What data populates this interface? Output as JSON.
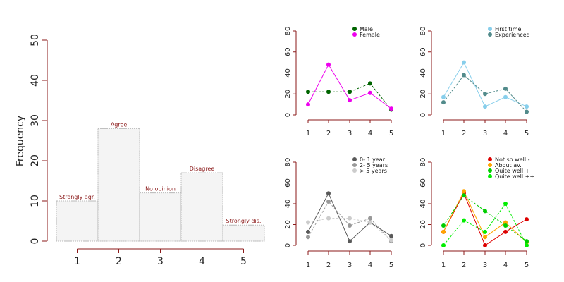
{
  "chart_data": [
    {
      "type": "bar",
      "ylabel": "Frequency",
      "categories": [
        "1",
        "2",
        "3",
        "4",
        "5"
      ],
      "values": [
        10,
        28,
        12,
        17,
        4
      ],
      "bar_labels": [
        "Strongly agr.",
        "Agree",
        "No opinion",
        "Disagree",
        "Strongly dis."
      ],
      "ylim": [
        0,
        50
      ],
      "yticks": [
        "0",
        "10",
        "20",
        "30",
        "40",
        "50"
      ],
      "colors": {
        "bar_fill": "#f4f4f4",
        "bar_stroke": "#b8b8b8",
        "bar_label": "#8b1a1a",
        "axis": "#8b1a1a"
      }
    },
    {
      "type": "line",
      "x": [
        "1",
        "2",
        "3",
        "4",
        "5"
      ],
      "ylim": [
        0,
        80
      ],
      "yticks": [
        "0",
        "20",
        "40",
        "60",
        "80"
      ],
      "legend": "top-right",
      "series": [
        {
          "name": "Male",
          "values": [
            22,
            22,
            22,
            30,
            5
          ],
          "color": "#006400",
          "dash": true
        },
        {
          "name": "Female",
          "values": [
            10,
            48,
            14,
            21,
            6
          ],
          "color": "#ee00ee",
          "dash": false
        }
      ]
    },
    {
      "type": "line",
      "x": [
        "1",
        "2",
        "3",
        "4",
        "5"
      ],
      "ylim": [
        0,
        80
      ],
      "yticks": [
        "0",
        "20",
        "40",
        "60",
        "80"
      ],
      "legend": "top-right",
      "series": [
        {
          "name": "First time",
          "values": [
            17,
            50,
            8,
            17,
            8
          ],
          "color": "#87ceeb",
          "dash": false
        },
        {
          "name": "Experienced",
          "values": [
            12,
            38,
            20,
            25,
            3
          ],
          "color": "#528b8b",
          "dash": true
        }
      ]
    },
    {
      "type": "line",
      "x": [
        "1",
        "2",
        "3",
        "4",
        "5"
      ],
      "ylim": [
        0,
        80
      ],
      "yticks": [
        "0",
        "20",
        "40",
        "60",
        "80"
      ],
      "legend": "top-right",
      "series": [
        {
          "name": "0- 1 year",
          "values": [
            13,
            50,
            4,
            22,
            9
          ],
          "color": "#595959",
          "dash": false
        },
        {
          "name": "2- 5 years",
          "values": [
            8,
            42,
            19,
            26,
            4
          ],
          "color": "#999999",
          "dash": true
        },
        {
          "name": "> 5 years",
          "values": [
            22,
            26,
            26,
            22,
            5
          ],
          "color": "#cccccc",
          "dash": true
        }
      ]
    },
    {
      "type": "line",
      "x": [
        "1",
        "2",
        "3",
        "4",
        "5"
      ],
      "ylim": [
        0,
        80
      ],
      "yticks": [
        "0",
        "20",
        "40",
        "60",
        "80"
      ],
      "legend": "top-right",
      "series": [
        {
          "name": "Not so well -",
          "values": [
            13,
            50,
            0,
            13,
            25
          ],
          "color": "#dd0000",
          "dash": false
        },
        {
          "name": "About av.",
          "values": [
            13,
            52,
            8,
            22,
            3
          ],
          "color": "#ffa500",
          "dash": false
        },
        {
          "name": "Quite well +",
          "values": [
            19,
            48,
            33,
            19,
            4
          ],
          "color": "#00cd00",
          "dash": true
        },
        {
          "name": "Quite well ++",
          "values": [
            0,
            24,
            13,
            40,
            0
          ],
          "color": "#00ee00",
          "dash": true
        }
      ]
    }
  ]
}
